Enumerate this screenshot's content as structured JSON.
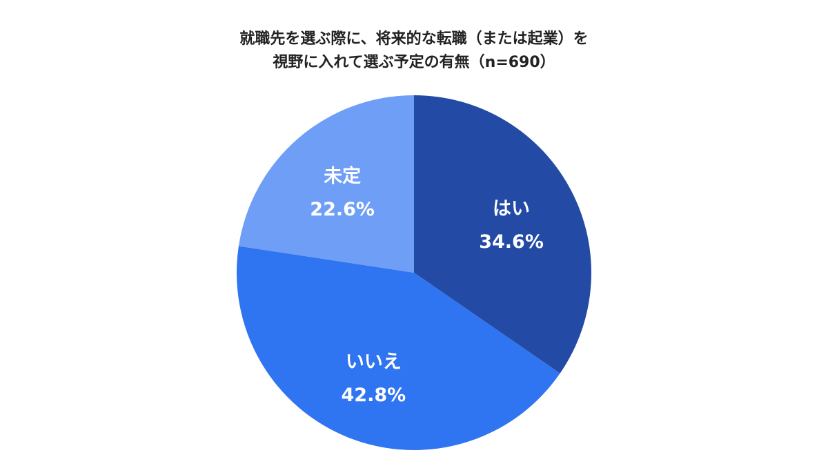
{
  "chart_data": {
    "type": "pie",
    "title_lines": [
      "就職先を選ぶ際に、将来的な転職（または起業）を",
      "視野に入れて選ぶ予定の有無（n=690）"
    ],
    "slices": [
      {
        "label": "はい",
        "value": 34.6,
        "value_label": "34.6%",
        "color": "#234ba6"
      },
      {
        "label": "いいえ",
        "value": 42.8,
        "value_label": "42.8%",
        "color": "#2f74f0"
      },
      {
        "label": "未定",
        "value": 22.6,
        "value_label": "22.6%",
        "color": "#6e9ef5"
      }
    ],
    "start": "12 o'clock",
    "direction": "clockwise",
    "legend": "none"
  }
}
